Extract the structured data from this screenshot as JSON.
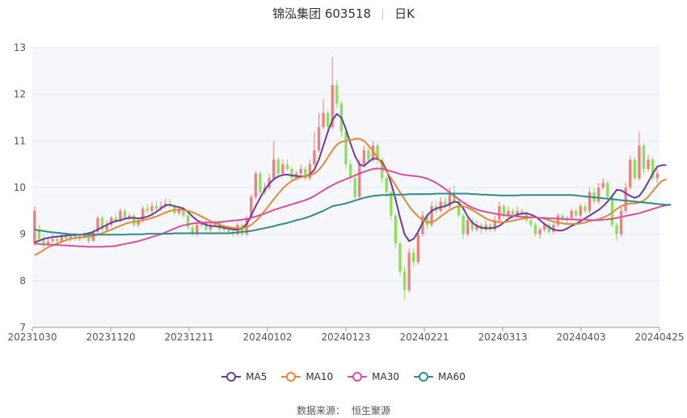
{
  "title": {
    "stock": "锦泓集团 603518",
    "period": "日K"
  },
  "source": {
    "label": "数据来源：",
    "name": "恒生聚源"
  },
  "colors": {
    "up": "#f08080",
    "down": "#8ee05a",
    "grid": "#e3e6ef",
    "plot_bg": "#f6f7fb"
  },
  "chart_data": {
    "type": "candlestick",
    "ylim": [
      7,
      13
    ],
    "yticks": [
      7,
      8,
      9,
      10,
      11,
      12,
      13
    ],
    "xticks": [
      "20231030",
      "20231120",
      "20231211",
      "20240102",
      "20240123",
      "20240221",
      "20240313",
      "20240403",
      "20240425"
    ],
    "candles": [
      [
        8.8,
        9.5,
        9.6,
        8.75
      ],
      [
        9.1,
        8.9,
        9.2,
        8.85
      ],
      [
        8.9,
        8.8,
        9.0,
        8.7
      ],
      [
        8.8,
        8.85,
        8.95,
        8.75
      ],
      [
        8.85,
        8.9,
        9.0,
        8.8
      ],
      [
        8.9,
        8.85,
        8.95,
        8.8
      ],
      [
        8.85,
        8.95,
        9.0,
        8.8
      ],
      [
        8.95,
        8.9,
        9.05,
        8.85
      ],
      [
        8.9,
        8.95,
        9.0,
        8.85
      ],
      [
        8.95,
        8.9,
        9.0,
        8.85
      ],
      [
        8.9,
        8.95,
        9.0,
        8.85
      ],
      [
        8.95,
        9.0,
        9.05,
        8.9
      ],
      [
        9.0,
        8.85,
        9.05,
        8.8
      ],
      [
        8.85,
        9.05,
        9.1,
        8.85
      ],
      [
        9.05,
        9.35,
        9.4,
        9.0
      ],
      [
        9.35,
        9.1,
        9.4,
        9.05
      ],
      [
        9.1,
        9.2,
        9.3,
        9.05
      ],
      [
        9.2,
        9.35,
        9.4,
        9.15
      ],
      [
        9.35,
        9.3,
        9.45,
        9.25
      ],
      [
        9.3,
        9.5,
        9.55,
        9.25
      ],
      [
        9.5,
        9.35,
        9.55,
        9.3
      ],
      [
        9.35,
        9.4,
        9.45,
        9.3
      ],
      [
        9.4,
        9.2,
        9.45,
        9.15
      ],
      [
        9.2,
        9.3,
        9.35,
        9.15
      ],
      [
        9.3,
        9.55,
        9.6,
        9.25
      ],
      [
        9.55,
        9.5,
        9.65,
        9.45
      ],
      [
        9.5,
        9.6,
        9.7,
        9.45
      ],
      [
        9.6,
        9.55,
        9.7,
        9.5
      ],
      [
        9.55,
        9.6,
        9.7,
        9.5
      ],
      [
        9.6,
        9.65,
        9.75,
        9.55
      ],
      [
        9.65,
        9.6,
        9.75,
        9.55
      ],
      [
        9.6,
        9.45,
        9.65,
        9.4
      ],
      [
        9.45,
        9.55,
        9.6,
        9.4
      ],
      [
        9.55,
        9.4,
        9.6,
        9.35
      ],
      [
        9.4,
        9.15,
        9.45,
        9.1
      ],
      [
        9.15,
        9.0,
        9.2,
        8.95
      ],
      [
        9.0,
        9.2,
        9.25,
        8.95
      ],
      [
        9.2,
        9.25,
        9.3,
        9.15
      ],
      [
        9.25,
        9.1,
        9.3,
        9.05
      ],
      [
        9.1,
        9.2,
        9.25,
        9.05
      ],
      [
        9.2,
        9.25,
        9.3,
        9.15
      ],
      [
        9.25,
        9.1,
        9.3,
        9.05
      ],
      [
        9.1,
        9.15,
        9.2,
        9.05
      ],
      [
        9.15,
        9.05,
        9.2,
        9.0
      ],
      [
        9.05,
        9.0,
        9.1,
        8.95
      ],
      [
        9.0,
        9.2,
        9.25,
        8.95
      ],
      [
        9.2,
        9.0,
        9.25,
        8.95
      ],
      [
        9.0,
        9.35,
        9.4,
        8.95
      ],
      [
        9.35,
        9.8,
        9.85,
        9.3
      ],
      [
        9.8,
        10.3,
        10.35,
        9.75
      ],
      [
        10.3,
        9.9,
        10.35,
        9.85
      ],
      [
        9.9,
        10.0,
        10.1,
        9.85
      ],
      [
        10.0,
        10.2,
        10.3,
        9.95
      ],
      [
        10.2,
        10.6,
        11.0,
        10.15
      ],
      [
        10.6,
        10.3,
        10.65,
        10.2
      ],
      [
        10.3,
        10.5,
        10.6,
        10.25
      ],
      [
        10.5,
        10.4,
        10.6,
        10.35
      ],
      [
        10.4,
        10.2,
        10.45,
        10.15
      ],
      [
        10.2,
        10.3,
        10.35,
        10.15
      ],
      [
        10.3,
        10.4,
        10.5,
        10.25
      ],
      [
        10.4,
        10.2,
        10.45,
        10.15
      ],
      [
        10.2,
        10.5,
        10.6,
        10.15
      ],
      [
        10.5,
        10.8,
        11.2,
        10.45
      ],
      [
        10.8,
        11.3,
        11.6,
        10.75
      ],
      [
        11.3,
        11.6,
        11.9,
        11.25
      ],
      [
        11.6,
        11.3,
        11.65,
        11.2
      ],
      [
        11.3,
        12.2,
        12.8,
        11.25
      ],
      [
        12.2,
        11.8,
        12.3,
        11.7
      ],
      [
        11.8,
        11.2,
        11.85,
        11.1
      ],
      [
        11.2,
        10.5,
        11.25,
        10.4
      ],
      [
        10.5,
        10.2,
        10.6,
        10.1
      ],
      [
        10.2,
        9.8,
        10.3,
        9.75
      ],
      [
        9.8,
        10.5,
        10.6,
        9.75
      ],
      [
        10.5,
        10.8,
        10.9,
        10.45
      ],
      [
        10.8,
        10.6,
        10.9,
        10.5
      ],
      [
        10.6,
        10.9,
        11.0,
        10.55
      ],
      [
        10.9,
        10.6,
        10.95,
        10.5
      ],
      [
        10.6,
        10.2,
        10.65,
        10.1
      ],
      [
        10.2,
        9.9,
        10.25,
        9.8
      ],
      [
        9.9,
        9.4,
        9.95,
        9.3
      ],
      [
        9.4,
        8.8,
        9.45,
        8.7
      ],
      [
        8.8,
        8.2,
        8.85,
        8.1
      ],
      [
        8.2,
        7.8,
        8.3,
        7.6
      ],
      [
        7.8,
        8.6,
        8.7,
        7.75
      ],
      [
        8.6,
        8.4,
        8.7,
        8.3
      ],
      [
        8.4,
        9.0,
        9.1,
        8.35
      ],
      [
        9.0,
        9.4,
        9.5,
        8.95
      ],
      [
        9.4,
        9.2,
        9.45,
        9.1
      ],
      [
        9.2,
        9.6,
        9.7,
        9.15
      ],
      [
        9.6,
        9.5,
        9.7,
        9.45
      ],
      [
        9.5,
        9.7,
        9.8,
        9.45
      ],
      [
        9.7,
        9.6,
        9.8,
        9.55
      ],
      [
        9.6,
        9.9,
        10.0,
        9.55
      ],
      [
        9.9,
        9.7,
        10.05,
        9.65
      ],
      [
        9.7,
        9.4,
        9.75,
        9.35
      ],
      [
        9.4,
        9.0,
        9.45,
        8.9
      ],
      [
        9.0,
        9.3,
        9.4,
        8.95
      ],
      [
        9.3,
        9.1,
        9.35,
        9.05
      ],
      [
        9.1,
        9.2,
        9.3,
        9.05
      ],
      [
        9.2,
        9.1,
        9.25,
        9.0
      ],
      [
        9.1,
        9.2,
        9.3,
        9.05
      ],
      [
        9.2,
        9.1,
        9.25,
        9.05
      ],
      [
        9.1,
        9.3,
        9.4,
        9.05
      ],
      [
        9.3,
        9.6,
        9.7,
        9.25
      ],
      [
        9.6,
        9.4,
        9.65,
        9.35
      ],
      [
        9.4,
        9.5,
        9.6,
        9.35
      ],
      [
        9.5,
        9.4,
        9.55,
        9.35
      ],
      [
        9.4,
        9.5,
        9.6,
        9.35
      ],
      [
        9.5,
        9.45,
        9.55,
        9.4
      ],
      [
        9.45,
        9.3,
        9.5,
        9.25
      ],
      [
        9.3,
        9.2,
        9.35,
        9.15
      ],
      [
        9.2,
        9.0,
        9.25,
        8.95
      ],
      [
        9.0,
        9.1,
        9.15,
        8.9
      ],
      [
        9.1,
        9.2,
        9.25,
        9.05
      ],
      [
        9.2,
        9.05,
        9.25,
        9.0
      ],
      [
        9.05,
        9.2,
        9.25,
        9.0
      ],
      [
        9.2,
        9.4,
        9.45,
        9.15
      ],
      [
        9.4,
        9.3,
        9.45,
        9.25
      ],
      [
        9.3,
        9.35,
        9.4,
        9.25
      ],
      [
        9.35,
        9.5,
        9.55,
        9.3
      ],
      [
        9.5,
        9.4,
        9.55,
        9.35
      ],
      [
        9.4,
        9.6,
        9.65,
        9.35
      ],
      [
        9.6,
        9.5,
        9.65,
        9.45
      ],
      [
        9.5,
        9.9,
        10.0,
        9.45
      ],
      [
        9.9,
        9.7,
        10.0,
        9.65
      ],
      [
        9.7,
        10.0,
        10.1,
        9.65
      ],
      [
        10.0,
        10.1,
        10.2,
        9.95
      ],
      [
        10.1,
        9.8,
        10.15,
        9.75
      ],
      [
        9.8,
        9.2,
        9.85,
        9.15
      ],
      [
        9.2,
        9.0,
        9.25,
        8.85
      ],
      [
        9.0,
        9.5,
        9.6,
        8.95
      ],
      [
        9.5,
        10.0,
        10.1,
        9.45
      ],
      [
        10.0,
        10.6,
        10.7,
        9.95
      ],
      [
        10.6,
        10.2,
        10.65,
        10.15
      ],
      [
        10.2,
        10.9,
        11.2,
        10.15
      ],
      [
        10.9,
        10.4,
        10.95,
        10.3
      ],
      [
        10.4,
        10.6,
        10.7,
        10.35
      ],
      [
        10.6,
        10.2,
        10.65,
        10.15
      ],
      [
        10.2,
        10.3,
        10.4,
        10.1
      ]
    ],
    "series": [
      {
        "name": "MA5",
        "color": "#6a3d9a",
        "values": [
          8.82,
          8.86,
          8.9,
          8.92,
          8.94,
          8.95,
          8.96,
          8.97,
          8.98,
          8.98,
          8.99,
          9.0,
          9.02,
          9.05,
          9.1,
          9.15,
          9.2,
          9.25,
          9.28,
          9.3,
          9.33,
          9.35,
          9.35,
          9.34,
          9.35,
          9.38,
          9.42,
          9.48,
          9.55,
          9.62,
          9.63,
          9.6,
          9.58,
          9.55,
          9.48,
          9.38,
          9.3,
          9.24,
          9.2,
          9.18,
          9.17,
          9.16,
          9.14,
          9.12,
          9.1,
          9.1,
          9.12,
          9.22,
          9.4,
          9.6,
          9.78,
          9.95,
          10.08,
          10.18,
          10.24,
          10.27,
          10.28,
          10.26,
          10.25,
          10.24,
          10.24,
          10.28,
          10.38,
          10.6,
          10.9,
          11.2,
          11.45,
          11.58,
          11.5,
          11.25,
          10.95,
          10.68,
          10.5,
          10.46,
          10.55,
          10.62,
          10.62,
          10.55,
          10.38,
          10.1,
          9.75,
          9.35,
          9.0,
          8.85,
          8.9,
          9.05,
          9.25,
          9.4,
          9.5,
          9.55,
          9.58,
          9.6,
          9.65,
          9.7,
          9.68,
          9.55,
          9.38,
          9.25,
          9.18,
          9.14,
          9.13,
          9.13,
          9.14,
          9.18,
          9.25,
          9.33,
          9.38,
          9.42,
          9.44,
          9.45,
          9.42,
          9.38,
          9.3,
          9.22,
          9.15,
          9.1,
          9.08,
          9.08,
          9.12,
          9.18,
          9.22,
          9.28,
          9.34,
          9.4,
          9.46,
          9.52,
          9.6,
          9.7,
          9.82,
          9.95,
          9.94,
          9.88,
          9.82,
          9.78,
          9.82,
          9.95,
          10.12,
          10.3,
          10.45,
          10.48,
          10.48
        ]
      },
      {
        "name": "MA10",
        "color": "#e0893a",
        "values": [
          8.55,
          8.6,
          8.66,
          8.72,
          8.76,
          8.8,
          8.84,
          8.87,
          8.9,
          8.92,
          8.93,
          8.94,
          8.95,
          8.96,
          8.99,
          9.02,
          9.06,
          9.1,
          9.14,
          9.18,
          9.22,
          9.25,
          9.27,
          9.28,
          9.3,
          9.32,
          9.35,
          9.38,
          9.42,
          9.46,
          9.5,
          9.52,
          9.53,
          9.52,
          9.5,
          9.47,
          9.43,
          9.38,
          9.33,
          9.28,
          9.24,
          9.2,
          9.17,
          9.15,
          9.14,
          9.13,
          9.13,
          9.15,
          9.2,
          9.28,
          9.38,
          9.5,
          9.62,
          9.75,
          9.87,
          9.98,
          10.07,
          10.14,
          10.19,
          10.22,
          10.24,
          10.26,
          10.3,
          10.38,
          10.5,
          10.65,
          10.8,
          10.92,
          10.98,
          11.0,
          11.02,
          11.04,
          11.05,
          11.0,
          10.9,
          10.78,
          10.65,
          10.5,
          10.35,
          10.2,
          10.05,
          9.9,
          9.75,
          9.6,
          9.48,
          9.38,
          9.3,
          9.26,
          9.26,
          9.3,
          9.38,
          9.45,
          9.52,
          9.57,
          9.6,
          9.6,
          9.57,
          9.52,
          9.46,
          9.4,
          9.34,
          9.3,
          9.27,
          9.26,
          9.26,
          9.27,
          9.29,
          9.31,
          9.33,
          9.35,
          9.36,
          9.36,
          9.35,
          9.33,
          9.3,
          9.27,
          9.25,
          9.23,
          9.22,
          9.22,
          9.22,
          9.23,
          9.25,
          9.28,
          9.3,
          9.32,
          9.36,
          9.4,
          9.46,
          9.54,
          9.6,
          9.64,
          9.66,
          9.66,
          9.68,
          9.72,
          9.8,
          9.92,
          10.04,
          10.14,
          10.18
        ]
      },
      {
        "name": "MA30",
        "color": "#d94f9c",
        "values": [
          8.8,
          8.79,
          8.78,
          8.78,
          8.77,
          8.77,
          8.76,
          8.76,
          8.75,
          8.75,
          8.74,
          8.74,
          8.73,
          8.73,
          8.73,
          8.73,
          8.74,
          8.74,
          8.75,
          8.77,
          8.79,
          8.81,
          8.83,
          8.85,
          8.88,
          8.91,
          8.94,
          8.97,
          9.0,
          9.04,
          9.08,
          9.12,
          9.16,
          9.19,
          9.21,
          9.23,
          9.24,
          9.25,
          9.25,
          9.25,
          9.25,
          9.26,
          9.27,
          9.28,
          9.29,
          9.3,
          9.31,
          9.33,
          9.35,
          9.38,
          9.41,
          9.44,
          9.48,
          9.52,
          9.55,
          9.58,
          9.61,
          9.64,
          9.67,
          9.7,
          9.73,
          9.77,
          9.82,
          9.88,
          9.94,
          10.0,
          10.05,
          10.1,
          10.14,
          10.18,
          10.22,
          10.26,
          10.3,
          10.34,
          10.37,
          10.4,
          10.41,
          10.4,
          10.38,
          10.35,
          10.32,
          10.29,
          10.27,
          10.26,
          10.25,
          10.24,
          10.22,
          10.19,
          10.15,
          10.1,
          10.04,
          9.97,
          9.9,
          9.82,
          9.75,
          9.68,
          9.62,
          9.57,
          9.53,
          9.5,
          9.48,
          9.46,
          9.44,
          9.42,
          9.41,
          9.4,
          9.39,
          9.38,
          9.37,
          9.37,
          9.36,
          9.36,
          9.35,
          9.35,
          9.34,
          9.34,
          9.33,
          9.33,
          9.32,
          9.32,
          9.31,
          9.31,
          9.31,
          9.3,
          9.3,
          9.3,
          9.31,
          9.32,
          9.33,
          9.35,
          9.37,
          9.39,
          9.41,
          9.43,
          9.45,
          9.48,
          9.51,
          9.54,
          9.57,
          9.6,
          9.62,
          9.63
        ]
      },
      {
        "name": "MA60",
        "color": "#2f8c8c",
        "values": [
          9.1,
          9.08,
          9.07,
          9.05,
          9.04,
          9.03,
          9.02,
          9.01,
          9.0,
          9.0,
          8.99,
          8.99,
          8.99,
          8.99,
          8.99,
          8.99,
          8.99,
          8.99,
          8.99,
          8.99,
          8.99,
          9.0,
          9.0,
          9.0,
          9.0,
          9.01,
          9.01,
          9.01,
          9.01,
          9.01,
          9.01,
          9.02,
          9.02,
          9.02,
          9.02,
          9.02,
          9.02,
          9.02,
          9.02,
          9.02,
          9.02,
          9.02,
          9.02,
          9.02,
          9.03,
          9.04,
          9.05,
          9.06,
          9.07,
          9.09,
          9.11,
          9.13,
          9.15,
          9.17,
          9.2,
          9.22,
          9.24,
          9.27,
          9.3,
          9.32,
          9.35,
          9.38,
          9.42,
          9.46,
          9.5,
          9.55,
          9.6,
          9.62,
          9.64,
          9.66,
          9.69,
          9.72,
          9.75,
          9.78,
          9.8,
          9.82,
          9.83,
          9.84,
          9.84,
          9.85,
          9.85,
          9.85,
          9.85,
          9.86,
          9.86,
          9.86,
          9.86,
          9.86,
          9.86,
          9.87,
          9.87,
          9.87,
          9.87,
          9.87,
          9.87,
          9.87,
          9.87,
          9.86,
          9.86,
          9.85,
          9.85,
          9.84,
          9.84,
          9.83,
          9.83,
          9.83,
          9.83,
          9.83,
          9.84,
          9.84,
          9.84,
          9.84,
          9.84,
          9.84,
          9.84,
          9.84,
          9.84,
          9.84,
          9.84,
          9.84,
          9.83,
          9.82,
          9.81,
          9.8,
          9.79,
          9.78,
          9.77,
          9.76,
          9.75,
          9.74,
          9.73,
          9.72,
          9.71,
          9.7,
          9.69,
          9.68,
          9.67,
          9.66,
          9.65,
          9.64,
          9.63,
          9.63
        ]
      }
    ]
  }
}
